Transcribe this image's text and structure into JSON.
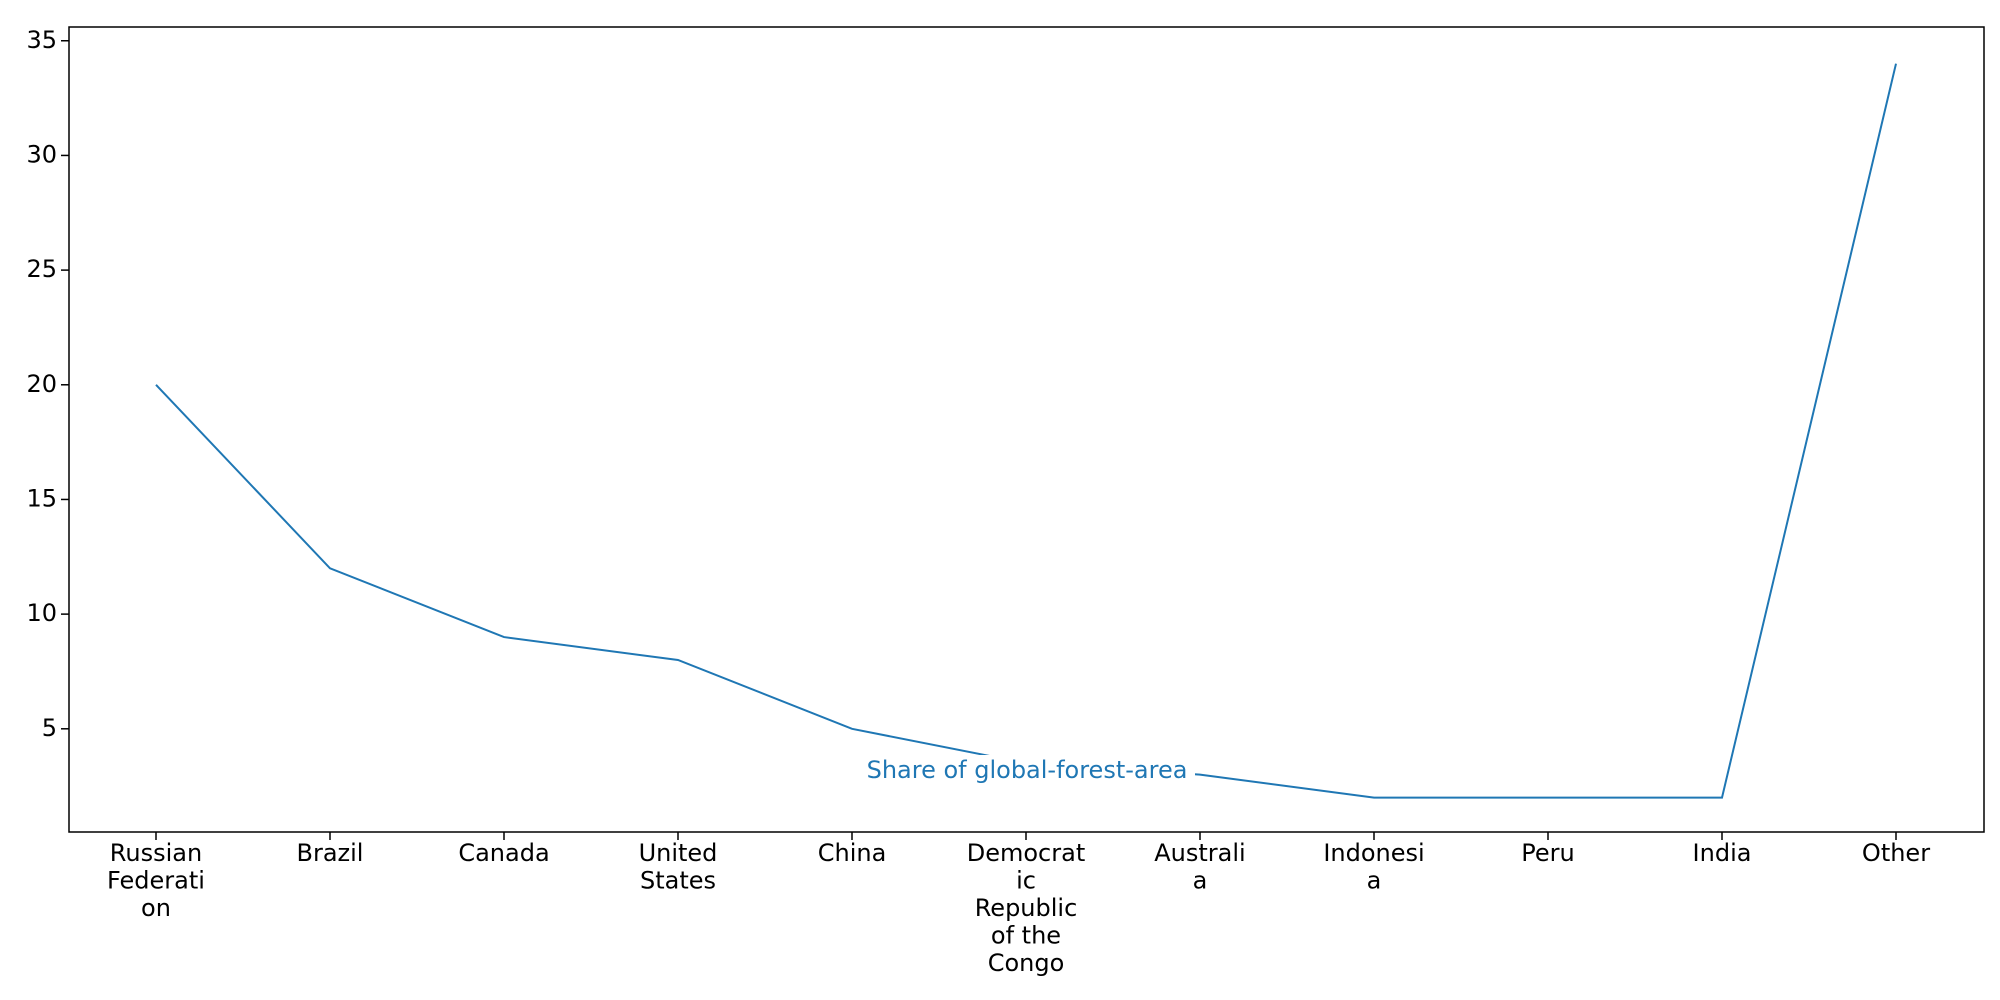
{
  "chart_data": {
    "type": "line",
    "title": "",
    "xlabel": "",
    "ylabel": "",
    "categories": [
      [
        "Russian",
        "Federati",
        "on"
      ],
      [
        "Brazil"
      ],
      [
        "Canada"
      ],
      [
        "United",
        "States"
      ],
      [
        "China"
      ],
      [
        "Democrat",
        "ic",
        "Republic",
        "of the",
        "Congo"
      ],
      [
        "Australi",
        "a"
      ],
      [
        "Indonesi",
        "a"
      ],
      [
        "Peru"
      ],
      [
        "India"
      ],
      [
        "Other"
      ]
    ],
    "series": [
      {
        "name": "Share of global-forest-area",
        "values": [
          20,
          12,
          9,
          8,
          5,
          3.5,
          3,
          2,
          2,
          2,
          34
        ],
        "color": "#1f77b4"
      }
    ],
    "ylim": [
      0.5,
      35.6
    ],
    "yticks": [
      "5",
      "10",
      "15",
      "20",
      "25",
      "30",
      "35"
    ],
    "inline_label_position": "center, over line",
    "grid": false,
    "legend": "none"
  }
}
